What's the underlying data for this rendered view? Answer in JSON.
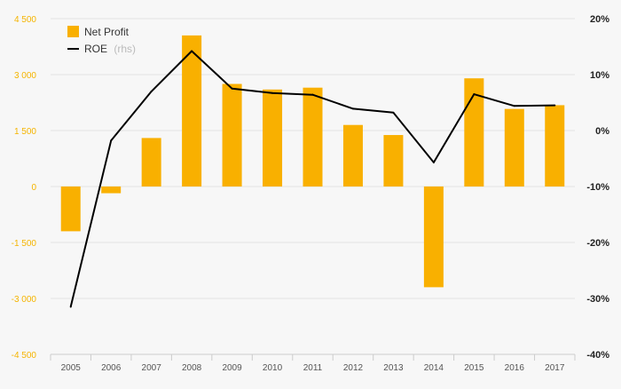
{
  "chart_data": {
    "type": "bar+line",
    "categories": [
      "2005",
      "2006",
      "2007",
      "2008",
      "2009",
      "2010",
      "2011",
      "2012",
      "2013",
      "2014",
      "2015",
      "2016",
      "2017"
    ],
    "series": [
      {
        "name": "Net Profit",
        "type": "bar",
        "axis": "left",
        "color": "#f9b000",
        "values": [
          -1200,
          -180,
          1300,
          4050,
          2750,
          2600,
          2650,
          1650,
          1380,
          -2700,
          2900,
          2080,
          2180
        ]
      },
      {
        "name": "ROE",
        "name_suffix": "(rhs)",
        "type": "line",
        "axis": "right",
        "color": "#000000",
        "values": [
          -31.5,
          -1.8,
          7.0,
          14.2,
          7.5,
          6.7,
          6.4,
          3.9,
          3.2,
          -5.7,
          6.5,
          4.4,
          4.5
        ]
      }
    ],
    "y_left": {
      "ylim": [
        -4500,
        4500
      ],
      "ticks": [
        -4500,
        -3000,
        -1500,
        0,
        1500,
        3000,
        4500
      ],
      "tick_labels": [
        "-4 500",
        "-3 000",
        "-1 500",
        "0",
        "1 500",
        "3 000",
        "4 500"
      ],
      "color": "#f5b400"
    },
    "y_right": {
      "ylim": [
        -40,
        20
      ],
      "ticks": [
        -40,
        -30,
        -20,
        -10,
        0,
        10,
        20
      ],
      "tick_labels": [
        "-40%",
        "-30%",
        "-20%",
        "-10%",
        "0%",
        "10%",
        "20%"
      ],
      "color": "#222222"
    },
    "grid": true,
    "legend": "top-left"
  }
}
